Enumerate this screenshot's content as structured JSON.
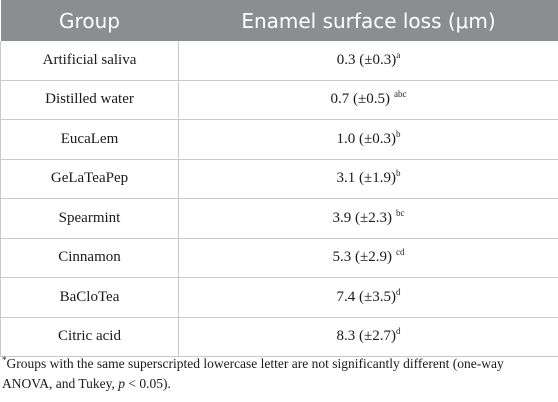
{
  "table": {
    "headers": [
      "Group",
      "Enamel surface loss (μm)"
    ],
    "rows": [
      {
        "group": "Artificial saliva",
        "value": "0.3 (±0.3)",
        "sup": "a",
        "gap": false
      },
      {
        "group": "Distilled water",
        "value": "0.7 (±0.5)",
        "sup": "abc",
        "gap": true
      },
      {
        "group": "EucaLem",
        "value": "1.0 (±0.3)",
        "sup": "b",
        "gap": false
      },
      {
        "group": "GeLaTeaPep",
        "value": "3.1 (±1.9)",
        "sup": "b",
        "gap": false
      },
      {
        "group": "Spearmint",
        "value": "3.9 (±2.3)",
        "sup": "bc",
        "gap": true
      },
      {
        "group": "Cinnamon",
        "value": "5.3 (±2.9)",
        "sup": "cd",
        "gap": true
      },
      {
        "group": "BaCloTea",
        "value": "7.4 (±3.5)",
        "sup": "d",
        "gap": false
      },
      {
        "group": "Citric acid",
        "value": "8.3 (±2.7)",
        "sup": "d",
        "gap": false
      }
    ]
  },
  "footnote": {
    "marker": "*",
    "text_before": "Groups with the same superscripted lowercase letter are not significantly different (one-way ANOVA, and Tukey, ",
    "p_symbol": "p",
    "text_after": " < 0.05)."
  },
  "colors": {
    "header_background": "#8c8d90",
    "header_text": "#ffffff",
    "grid_line": "#c9c9c9"
  }
}
